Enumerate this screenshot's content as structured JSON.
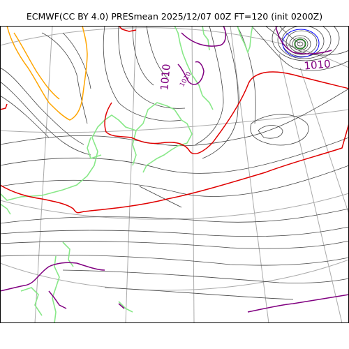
{
  "title": "ECMWF(CC BY 4.0) PRESmean 2025/12/07 00Z FT=120 (init 0200Z)",
  "contour_labels": {
    "label_a": "1010",
    "label_b": "1010",
    "label_c": "1010"
  },
  "colors": {
    "isobar": "#444444",
    "grid": "#aaaaaa",
    "coastline": "#88e888",
    "contour_1010": "#800080",
    "contour_1020": "#e00000",
    "contour_1000": "#ffa500",
    "contour_990": "#0000ff",
    "frame": "#000000"
  }
}
